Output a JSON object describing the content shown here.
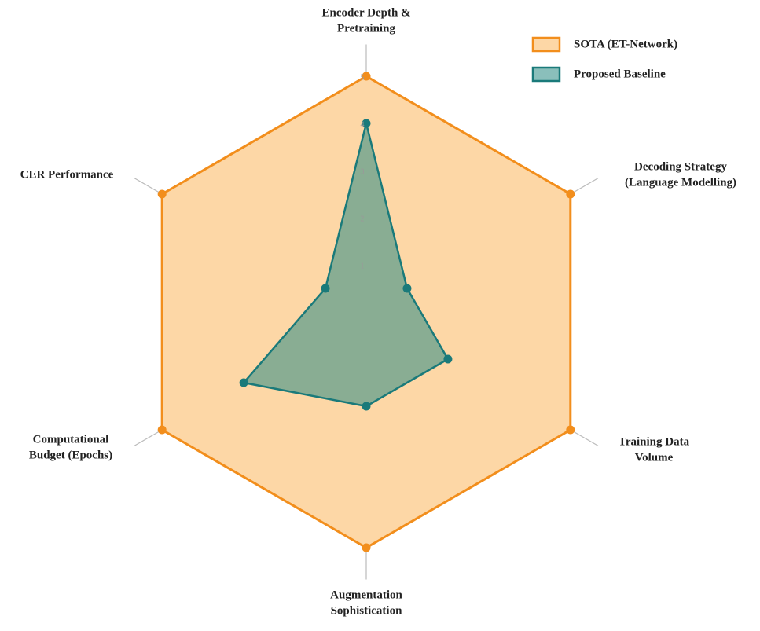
{
  "chart_data": {
    "type": "radar",
    "categories": [
      [
        "Encoder Depth &",
        "Pretraining"
      ],
      [
        "Decoding Strategy",
        "(Language Modelling)"
      ],
      [
        "Training Data",
        "Volume"
      ],
      [
        "Augmentation",
        "Sophistication"
      ],
      [
        "Computational",
        "Budget (Epochs)"
      ],
      [
        "CER Performance"
      ]
    ],
    "series": [
      {
        "name": "SOTA (ET-Network)",
        "color": "#f28e1c",
        "values": [
          5,
          5,
          5,
          5,
          5,
          5
        ]
      },
      {
        "name": "Proposed Baseline",
        "color": "#1a7a7a",
        "values": [
          4,
          1,
          2,
          2,
          3,
          1
        ]
      }
    ],
    "rlim": [
      0,
      5
    ],
    "rticks": [
      1,
      2,
      3,
      4,
      5
    ],
    "grid": true,
    "legend": "upper right"
  }
}
